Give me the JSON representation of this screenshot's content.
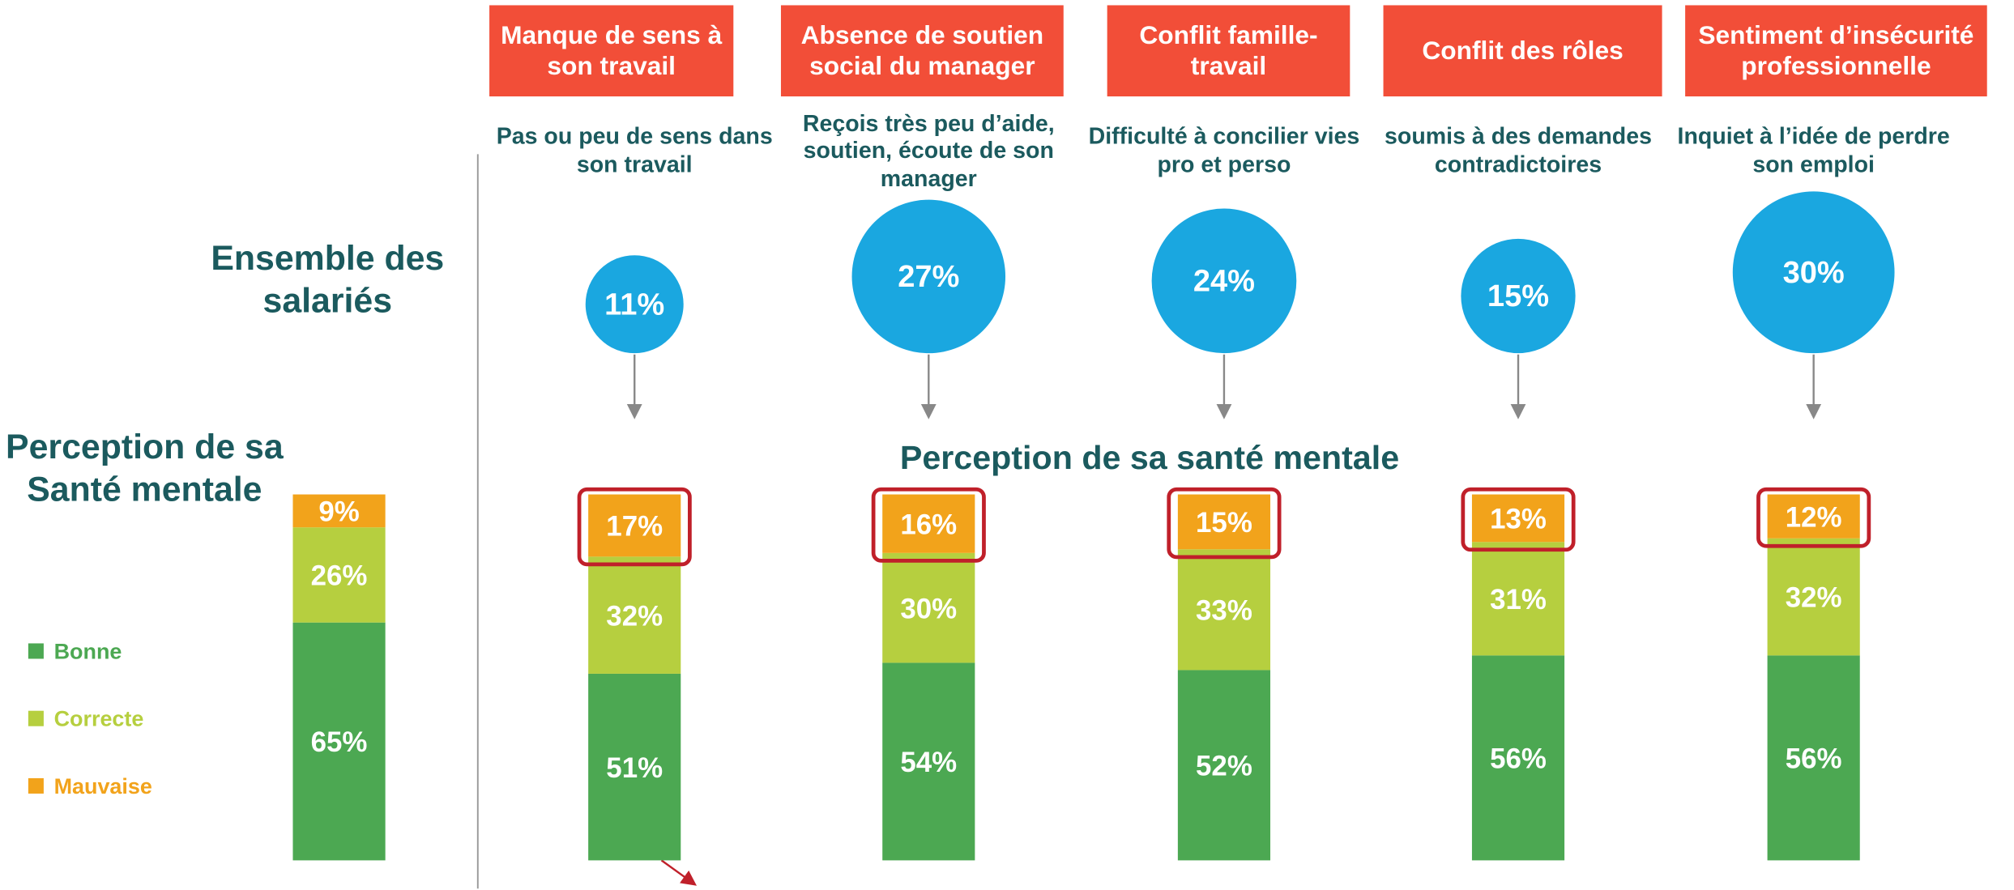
{
  "chart_data": {
    "type": "stacked_bar",
    "title": "Perception de sa santé mentale",
    "row_labels": [
      "Ensemble des salariés",
      "Perception de sa Santé mentale"
    ],
    "categories": [
      null,
      "Manque de sens à son travail",
      "Absence de soutien social du manager",
      "Conflit famille-travail",
      "Conflit des rôles",
      "Sentiment d’insécurité professionnelle"
    ],
    "descriptions": [
      null,
      "Pas ou peu de sens dans son travail",
      "Reçois très peu d’aide, soutien, écoute de son manager",
      "Difficulté à concilier vies pro et perso",
      "soumis à des demandes contradictoires",
      "Inquiet à l’idée de perdre son emploi"
    ],
    "bubble_values": [
      null,
      11,
      27,
      24,
      15,
      30
    ],
    "bubble_value_labels": [
      null,
      "11%",
      "27%",
      "24%",
      "15%",
      "30%"
    ],
    "bubble_color": "#1aa7e0",
    "header_color": "#f24e38",
    "ylim": [
      0,
      100
    ],
    "series": [
      {
        "name": "Bonne",
        "color": "#4ca852",
        "values": [
          65,
          51,
          54,
          52,
          56,
          56
        ],
        "value_labels": [
          "65%",
          "51%",
          "54%",
          "52%",
          "56%",
          "56%"
        ]
      },
      {
        "name": "Correcte",
        "color": "#b6cf3f",
        "values": [
          26,
          32,
          30,
          33,
          31,
          32
        ],
        "value_labels": [
          "26%",
          "32%",
          "30%",
          "33%",
          "31%",
          "32%"
        ]
      },
      {
        "name": "Mauvaise",
        "color": "#f2a31b",
        "values": [
          9,
          17,
          16,
          15,
          13,
          12
        ],
        "value_labels": [
          "9%",
          "17%",
          "16%",
          "15%",
          "13%",
          "12%"
        ]
      }
    ]
  }
}
